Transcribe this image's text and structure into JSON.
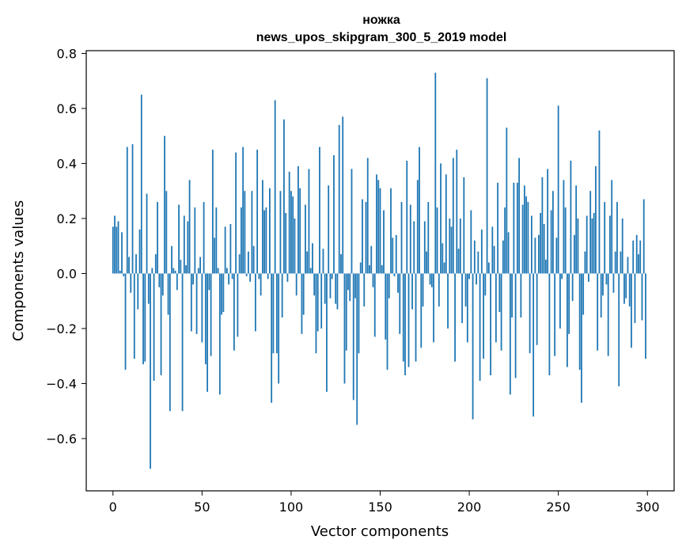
{
  "chart_data": {
    "type": "bar",
    "title": "ножка",
    "subtitle": "news_upos_skipgram_300_5_2019 model",
    "xlabel": "Vector components",
    "ylabel": "Components values",
    "xlim": [
      -15,
      315
    ],
    "ylim": [
      -0.79,
      0.81
    ],
    "x_ticks": [
      0,
      50,
      100,
      150,
      200,
      250,
      300
    ],
    "x_tick_labels": [
      "0",
      "50",
      "100",
      "150",
      "200",
      "250",
      "300"
    ],
    "y_ticks": [
      -0.6,
      -0.4,
      -0.2,
      0.0,
      0.2,
      0.4,
      0.6,
      0.8
    ],
    "y_tick_labels": [
      "−0.6",
      "−0.4",
      "−0.2",
      "0.0",
      "0.2",
      "0.4",
      "0.6",
      "0.8"
    ],
    "grid": false,
    "bar_color": "#1f77b4",
    "values": [
      0.17,
      0.21,
      0.17,
      0.19,
      0.01,
      0.15,
      -0.01,
      -0.35,
      0.46,
      0.06,
      -0.07,
      0.47,
      -0.31,
      0.07,
      -0.13,
      0.16,
      0.65,
      -0.33,
      -0.32,
      0.29,
      -0.11,
      -0.71,
      0.02,
      -0.39,
      0.07,
      0.26,
      -0.05,
      -0.37,
      -0.08,
      0.5,
      0.3,
      -0.15,
      -0.5,
      0.1,
      0.02,
      0.01,
      -0.06,
      0.25,
      0.05,
      -0.5,
      0.21,
      0.03,
      0.19,
      0.34,
      -0.21,
      -0.04,
      0.24,
      -0.22,
      0.02,
      0.06,
      -0.25,
      0.26,
      -0.33,
      -0.43,
      -0.06,
      -0.3,
      0.45,
      0.13,
      0.24,
      0.02,
      -0.44,
      -0.15,
      -0.14,
      0.17,
      0.02,
      -0.04,
      0.18,
      -0.02,
      -0.28,
      0.44,
      -0.23,
      0.07,
      0.24,
      0.46,
      0.3,
      -0.01,
      0.08,
      -0.03,
      0.3,
      0.1,
      -0.21,
      0.45,
      -0.02,
      -0.08,
      0.34,
      0.23,
      0.24,
      -0.02,
      0.31,
      -0.47,
      -0.29,
      0.63,
      -0.29,
      -0.4,
      0.3,
      -0.16,
      0.56,
      0.22,
      -0.03,
      0.37,
      0.3,
      0.28,
      0.2,
      -0.08,
      0.39,
      0.31,
      -0.22,
      -0.15,
      0.25,
      0.08,
      0.38,
      0.02,
      0.11,
      -0.08,
      -0.29,
      -0.21,
      0.46,
      -0.2,
      0.09,
      -0.11,
      -0.43,
      0.32,
      -0.09,
      -0.02,
      0.43,
      -0.11,
      -0.13,
      0.54,
      0.07,
      0.57,
      -0.4,
      -0.28,
      -0.06,
      -0.1,
      0.38,
      -0.46,
      -0.09,
      -0.55,
      -0.29,
      0.04,
      0.27,
      -0.12,
      0.26,
      0.42,
      0.03,
      0.1,
      -0.05,
      -0.23,
      0.36,
      0.34,
      0.31,
      0.03,
      0.23,
      -0.24,
      -0.35,
      -0.09,
      0.31,
      0.13,
      -0.01,
      0.14,
      -0.07,
      -0.22,
      0.26,
      -0.32,
      -0.37,
      0.41,
      -0.34,
      0.25,
      -0.13,
      0.19,
      -0.32,
      0.34,
      0.46,
      -0.27,
      -0.12,
      0.19,
      0.08,
      0.26,
      -0.04,
      -0.05,
      -0.25,
      0.73,
      0.24,
      -0.12,
      0.4,
      0.11,
      0.04,
      0.36,
      -0.2,
      0.2,
      0.17,
      0.42,
      -0.32,
      0.45,
      0.09,
      0.2,
      -0.18,
      0.35,
      -0.12,
      -0.25,
      -0.02,
      0.23,
      -0.53,
      0.12,
      -0.04,
      0.08,
      -0.39,
      0.16,
      -0.31,
      -0.08,
      0.71,
      0.04,
      -0.37,
      0.17,
      0.1,
      -0.25,
      0.33,
      -0.14,
      -0.28,
      0.12,
      0.24,
      0.53,
      0.15,
      -0.44,
      -0.16,
      0.33,
      -0.38,
      0.33,
      0.42,
      -0.16,
      0.25,
      0.32,
      0.28,
      0.26,
      -0.29,
      0.21,
      -0.52,
      0.13,
      -0.26,
      0.14,
      0.22,
      0.35,
      0.18,
      0.05,
      0.38,
      -0.37,
      0.23,
      0.3,
      -0.3,
      0.13,
      0.61,
      -0.2,
      -0.02,
      0.34,
      0.24,
      -0.34,
      -0.22,
      0.41,
      -0.1,
      0.14,
      0.32,
      0.2,
      -0.35,
      -0.47,
      -0.15,
      0.08,
      0.21,
      -0.03,
      0.3,
      0.2,
      0.22,
      0.39,
      -0.28,
      0.52,
      -0.16,
      -0.08,
      0.26,
      -0.04,
      -0.3,
      0.21,
      0.34,
      -0.07,
      0.08,
      0.26,
      -0.41,
      0.08,
      0.2,
      -0.11,
      -0.09,
      0.06,
      -0.12,
      -0.27,
      0.12,
      -0.18,
      0.14,
      0.07,
      0.12,
      -0.17,
      0.27,
      -0.31
    ]
  }
}
